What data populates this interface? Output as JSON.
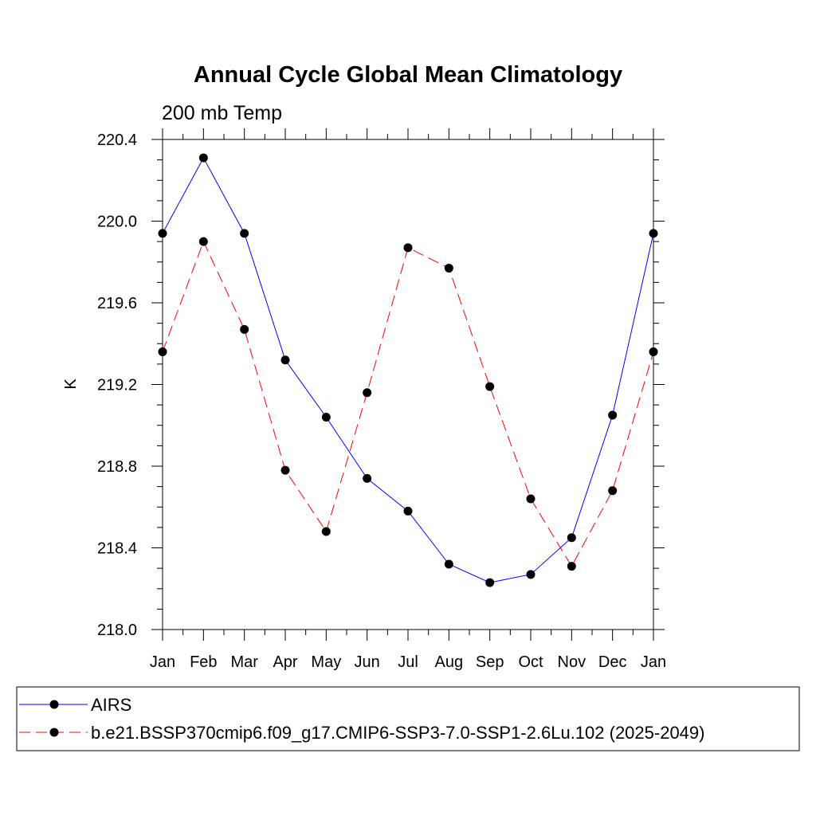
{
  "chart_data": {
    "type": "line",
    "title": "Annual Cycle Global Mean Climatology",
    "subtitle": "200 mb Temp",
    "xlabel": "",
    "ylabel": "K",
    "categories": [
      "Jan",
      "Feb",
      "Mar",
      "Apr",
      "May",
      "Jun",
      "Jul",
      "Aug",
      "Sep",
      "Oct",
      "Nov",
      "Dec",
      "Jan"
    ],
    "ylim": [
      218.0,
      220.4
    ],
    "yticks": [
      "218.0",
      "218.4",
      "218.8",
      "219.2",
      "219.6",
      "220.0",
      "220.4"
    ],
    "grid": false,
    "legend_position": "bottom",
    "series": [
      {
        "name": "AIRS",
        "color": "#0000ff",
        "dash": "solid",
        "marker": "filled-circle",
        "values": [
          219.94,
          220.31,
          219.94,
          219.32,
          219.04,
          218.74,
          218.58,
          218.32,
          218.23,
          218.27,
          218.45,
          219.05,
          219.94
        ]
      },
      {
        "name": "b.e21.BSSP370cmip6.f09_g17.CMIP6-SSP3-7.0-SSP1-2.6Lu.102 (2025-2049)",
        "color": "#ff0000",
        "dash": "dashed",
        "marker": "filled-circle",
        "values": [
          219.36,
          219.9,
          219.47,
          218.78,
          218.48,
          219.16,
          219.87,
          219.77,
          219.19,
          218.64,
          218.31,
          218.68,
          219.36
        ]
      }
    ]
  }
}
